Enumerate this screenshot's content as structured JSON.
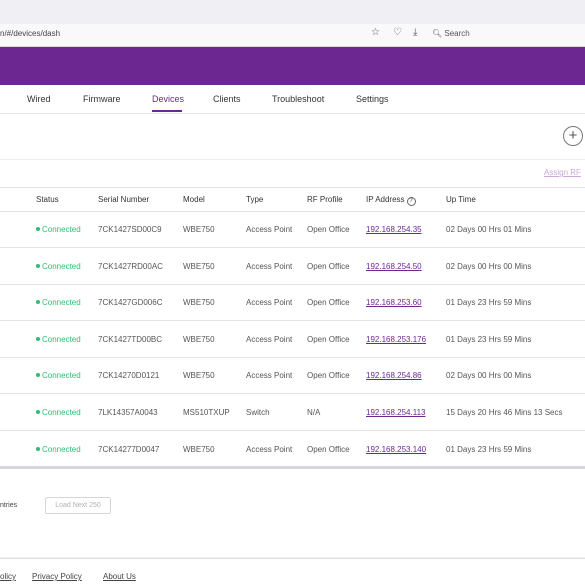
{
  "browser": {
    "url_prefix": "n/#/devices/dash",
    "search_label": "Search",
    "icons": [
      "star-icon",
      "pocket-icon",
      "download-icon",
      "search-icon"
    ]
  },
  "nav": {
    "tabs": [
      {
        "label": "Wired"
      },
      {
        "label": "Firmware"
      },
      {
        "label": "Devices"
      },
      {
        "label": "Clients"
      },
      {
        "label": "Troubleshoot"
      },
      {
        "label": "Settings"
      }
    ],
    "active_tab": "Devices"
  },
  "toolbar": {
    "add_icon": "+",
    "assign_rf_label": "Assign RF"
  },
  "table": {
    "headers": [
      "Status",
      "Serial Number",
      "Model",
      "Type",
      "RF Profile",
      "IP Address",
      "Up Time"
    ],
    "rows": [
      {
        "status": "Connected",
        "serial": "7CK1427SD00C9",
        "model": "WBE750",
        "type": "Access Point",
        "rf": "Open Office",
        "ip": "192.168.254.35",
        "uptime": "02 Days 00 Hrs 01 Mins"
      },
      {
        "status": "Connected",
        "serial": "7CK1427RD00AC",
        "model": "WBE750",
        "type": "Access Point",
        "rf": "Open Office",
        "ip": "192.168.254.50",
        "uptime": "02 Days 00 Hrs 00 Mins"
      },
      {
        "status": "Connected",
        "serial": "7CK1427GD006C",
        "model": "WBE750",
        "type": "Access Point",
        "rf": "Open Office",
        "ip": "192.168.253.60",
        "uptime": "01 Days 23 Hrs 59 Mins"
      },
      {
        "status": "Connected",
        "serial": "7CK1427TD00BC",
        "model": "WBE750",
        "type": "Access Point",
        "rf": "Open Office",
        "ip": "192.168.253.176",
        "uptime": "01 Days 23 Hrs 59 Mins"
      },
      {
        "status": "Connected",
        "serial": "7CK14270D0121",
        "model": "WBE750",
        "type": "Access Point",
        "rf": "Open Office",
        "ip": "192.168.254.86",
        "uptime": "02 Days 00 Hrs 00 Mins"
      },
      {
        "status": "Connected",
        "serial": "7LK14357A0043",
        "model": "MS510TXUP",
        "type": "Switch",
        "rf": "N/A",
        "ip": "192.168.254.113",
        "uptime": "15 Days 20 Hrs 46 Mins 13 Secs"
      },
      {
        "status": "Connected",
        "serial": "7CK14277D0047",
        "model": "WBE750",
        "type": "Access Point",
        "rf": "Open Office",
        "ip": "192.168.253.140",
        "uptime": "01 Days 23 Hrs 59 Mins"
      }
    ]
  },
  "pagination": {
    "entries_label": "ntries",
    "load_next_label": "Load Next 250"
  },
  "footer": {
    "links": [
      "olicy",
      "Privacy Policy",
      "About Us"
    ]
  },
  "colors": {
    "brand": "#6c2791",
    "connected": "#2ebd73"
  }
}
